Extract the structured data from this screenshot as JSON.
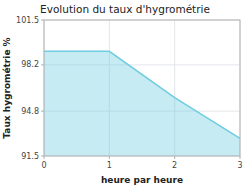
{
  "chart_data": {
    "type": "area",
    "title": "Evolution du taux d'hygrométrie",
    "xlabel": "heure par heure",
    "ylabel": "Taux hygrométrie %",
    "x": [
      0,
      1,
      2,
      3
    ],
    "values": [
      99.2,
      99.2,
      95.8,
      92.8
    ],
    "color": "#70cce0",
    "xlim": [
      0,
      3
    ],
    "ylim": [
      91.5,
      101.5
    ],
    "xticks": [
      0,
      1,
      2,
      3
    ],
    "yticks": [
      91.5,
      94.8,
      98.2,
      101.5
    ],
    "grid": true
  }
}
